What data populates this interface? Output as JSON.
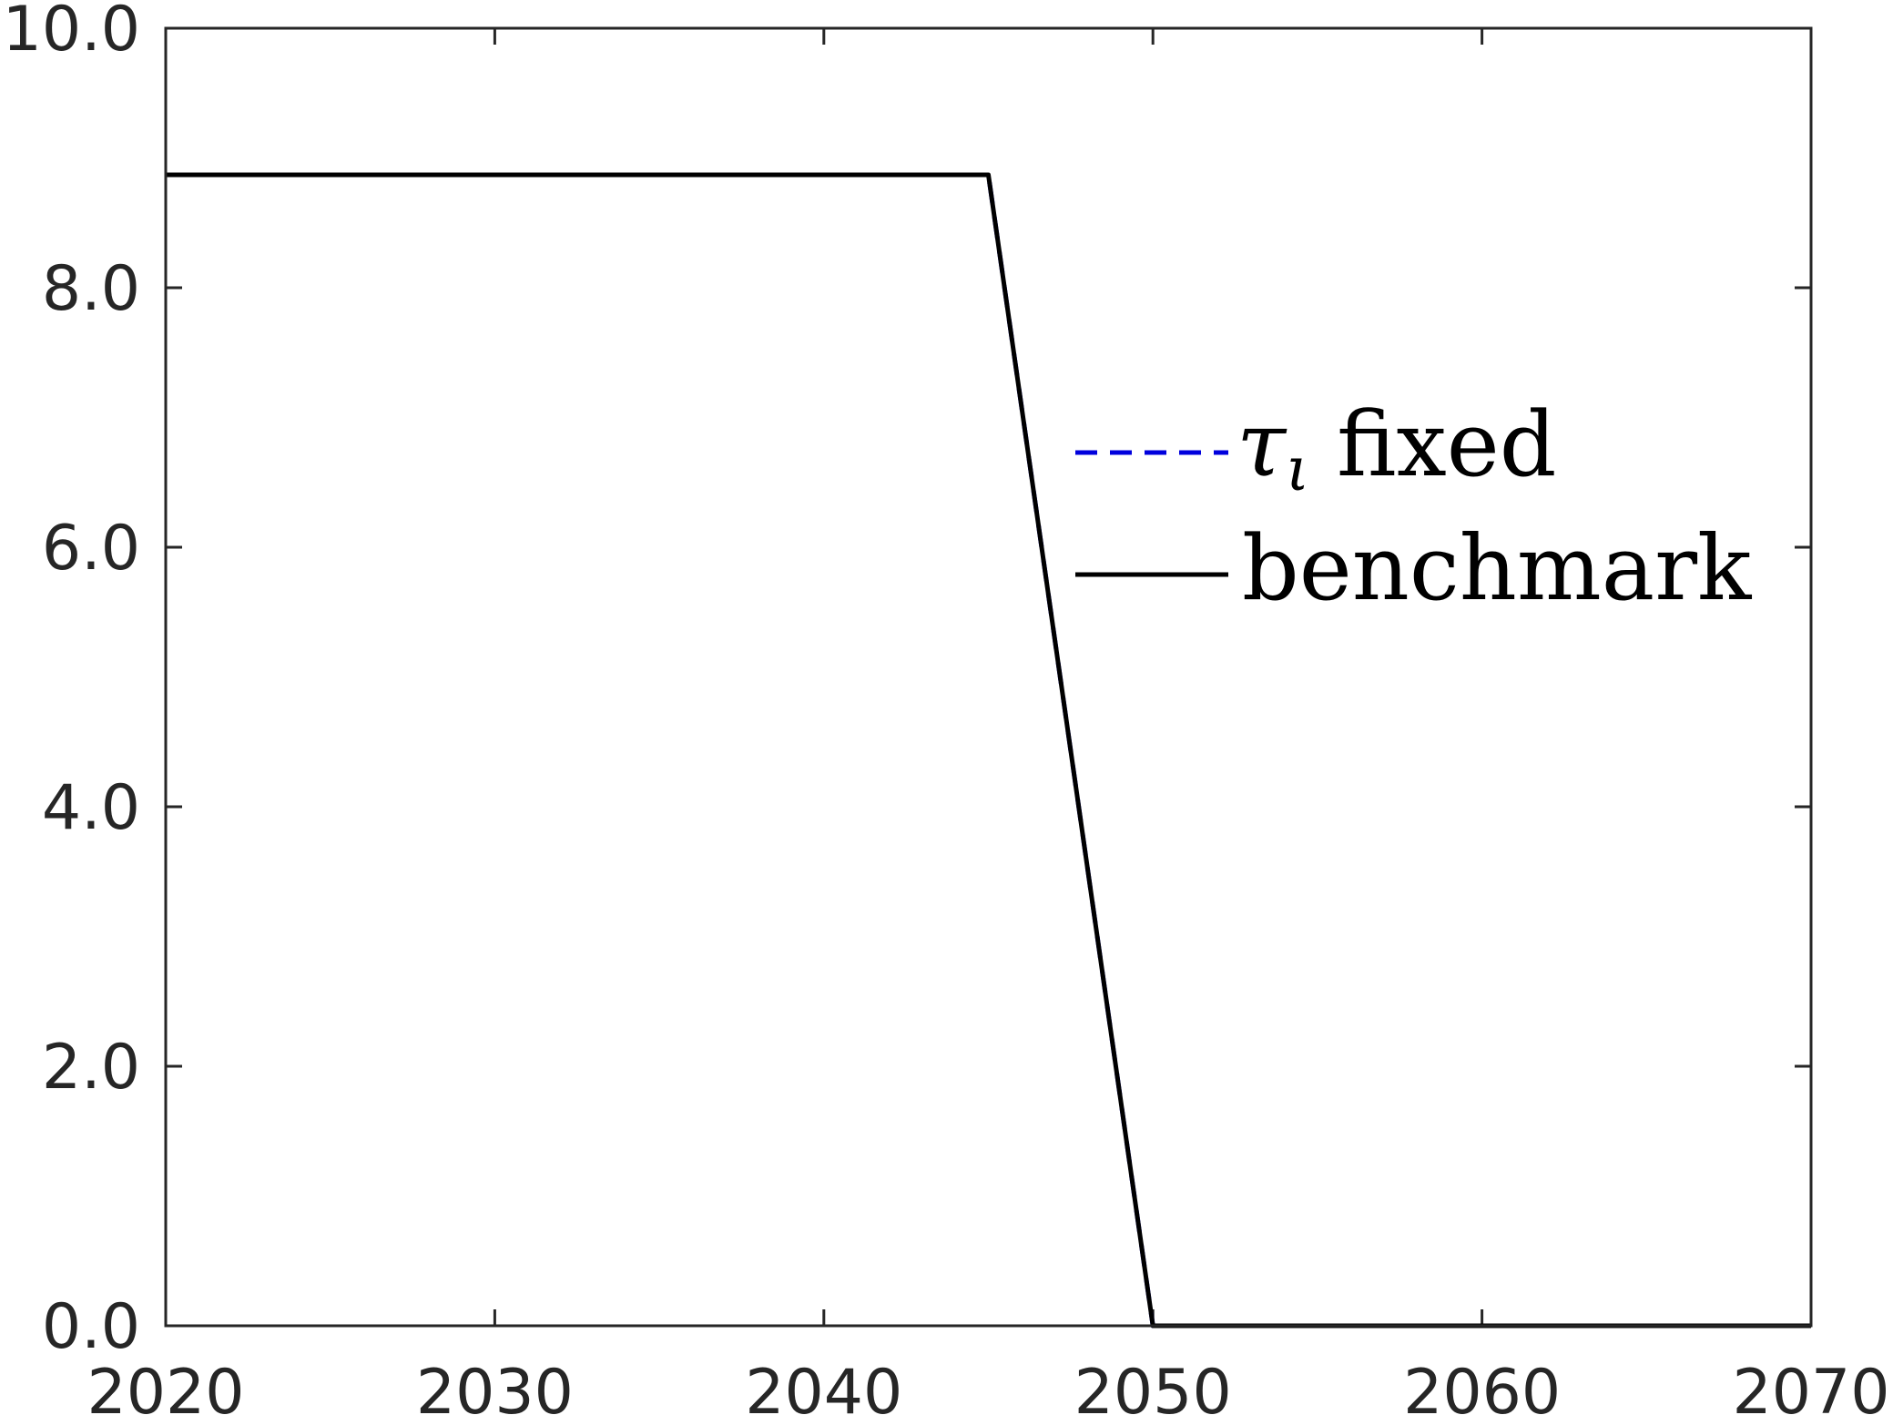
{
  "chart_data": {
    "type": "line",
    "title": "",
    "xlabel": "",
    "ylabel": "",
    "xlim": [
      2020,
      2070
    ],
    "ylim": [
      0,
      10
    ],
    "x_ticks": [
      2020,
      2030,
      2040,
      2050,
      2060,
      2070
    ],
    "x_tick_labels": [
      "2020",
      "2030",
      "2040",
      "2050",
      "2060",
      "2070"
    ],
    "y_ticks": [
      0,
      2,
      4,
      6,
      8,
      10
    ],
    "y_tick_labels": [
      "0.0",
      "2.0",
      "4.0",
      "6.0",
      "8.0",
      "10.0"
    ],
    "grid": false,
    "legend_position": "center-right",
    "series": [
      {
        "name": "benchmark",
        "color": "#000000",
        "style": "solid",
        "x": [
          2020,
          2045,
          2050,
          2070
        ],
        "y": [
          8.87,
          8.87,
          0.0,
          0.0
        ]
      },
      {
        "name": "fixed",
        "name_symbol": "τ",
        "name_subscript": "ι",
        "color": "#0000dd",
        "style": "dashed",
        "x": [
          2020,
          2045,
          2050,
          2070
        ],
        "y": [
          8.87,
          8.87,
          0.0,
          0.0
        ]
      }
    ]
  }
}
